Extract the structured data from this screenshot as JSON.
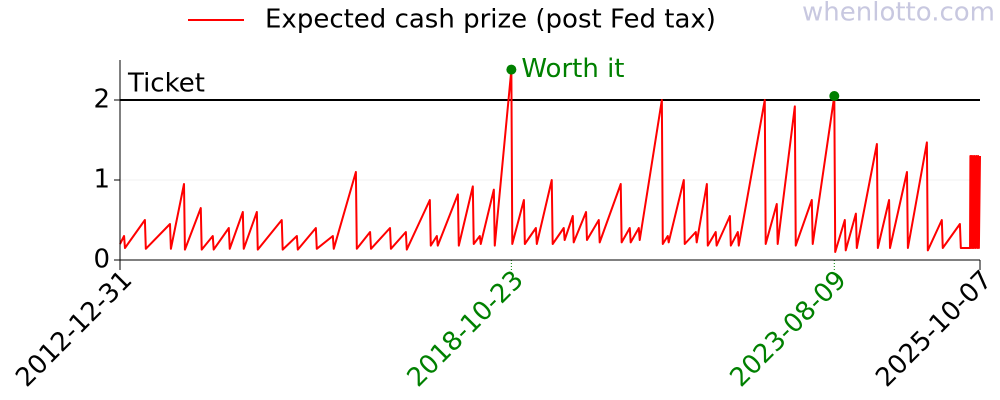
{
  "chart_data": {
    "type": "line",
    "watermark": "whenlotto.com",
    "x": [
      "2012-12-31",
      "2013-01-22",
      "2013-01-27",
      "2013-05-15",
      "2013-05-20",
      "2013-09-28",
      "2013-10-03",
      "2013-12-13",
      "2013-12-18",
      "2014-03-14",
      "2014-03-19",
      "2014-05-18",
      "2014-05-23",
      "2014-08-13",
      "2014-08-18",
      "2014-10-28",
      "2014-11-02",
      "2015-01-12",
      "2015-01-17",
      "2015-05-27",
      "2015-06-01",
      "2015-08-17",
      "2015-08-22",
      "2015-11-28",
      "2015-12-03",
      "2016-02-28",
      "2016-03-04",
      "2016-07-02",
      "2016-07-07",
      "2016-09-17",
      "2016-09-22",
      "2017-01-03",
      "2017-01-08",
      "2017-03-30",
      "2017-04-04",
      "2017-08-07",
      "2017-08-12",
      "2017-09-14",
      "2017-09-19",
      "2018-01-06",
      "2018-01-11",
      "2018-03-28",
      "2018-04-02",
      "2018-05-05",
      "2018-05-10",
      "2018-07-20",
      "2018-07-25",
      "2018-10-23",
      "2018-10-28",
      "2018-12-30",
      "2019-01-04",
      "2019-03-05",
      "2019-03-10",
      "2019-05-30",
      "2019-06-04",
      "2019-08-03",
      "2019-08-08",
      "2019-09-21",
      "2019-09-26",
      "2019-12-02",
      "2019-12-07",
      "2020-02-09",
      "2020-02-14",
      "2020-06-07",
      "2020-06-12",
      "2020-07-26",
      "2020-07-31",
      "2020-09-13",
      "2020-09-18",
      "2021-01-16",
      "2021-01-21",
      "2021-02-17",
      "2021-02-22",
      "2021-05-15",
      "2021-05-20",
      "2021-07-19",
      "2021-07-24",
      "2021-09-17",
      "2021-09-22",
      "2021-11-04",
      "2021-11-09",
      "2022-01-20",
      "2022-01-25",
      "2022-03-04",
      "2022-03-09",
      "2022-07-28",
      "2022-08-02",
      "2022-10-01",
      "2022-10-06",
      "2023-01-07",
      "2023-01-12",
      "2023-04-09",
      "2023-04-14",
      "2023-08-09",
      "2023-08-14",
      "2023-10-05",
      "2023-10-10",
      "2023-12-04",
      "2023-12-09",
      "2024-03-27",
      "2024-04-01",
      "2024-06-01",
      "2024-06-06",
      "2024-09-06",
      "2024-09-11",
      "2024-12-23",
      "2024-12-28",
      "2025-03-14",
      "2025-03-19",
      "2025-06-20",
      "2025-06-25",
      "2025-08-14",
      "2025-08-16",
      "2025-08-19",
      "2025-08-22",
      "2025-08-26",
      "2025-08-30",
      "2025-09-03",
      "2025-09-08",
      "2025-09-12",
      "2025-09-18",
      "2025-09-22",
      "2025-09-27",
      "2025-10-01",
      "2025-10-07"
    ],
    "series": [
      {
        "name": "Expected cash prize (post Fed tax)",
        "color": "#ff0000",
        "values": [
          0.2,
          0.3,
          0.15,
          0.5,
          0.14,
          0.45,
          0.14,
          0.95,
          0.13,
          0.65,
          0.13,
          0.3,
          0.13,
          0.4,
          0.14,
          0.6,
          0.14,
          0.6,
          0.13,
          0.5,
          0.13,
          0.3,
          0.13,
          0.4,
          0.14,
          0.3,
          0.14,
          1.1,
          0.14,
          0.35,
          0.14,
          0.4,
          0.14,
          0.35,
          0.13,
          0.75,
          0.18,
          0.3,
          0.18,
          0.82,
          0.18,
          0.92,
          0.2,
          0.3,
          0.2,
          0.88,
          0.18,
          2.38,
          0.2,
          0.75,
          0.2,
          0.4,
          0.2,
          1.0,
          0.2,
          0.4,
          0.25,
          0.55,
          0.22,
          0.6,
          0.25,
          0.5,
          0.22,
          0.95,
          0.22,
          0.4,
          0.22,
          0.4,
          0.25,
          2.0,
          0.2,
          0.3,
          0.22,
          1.0,
          0.2,
          0.35,
          0.22,
          0.95,
          0.18,
          0.35,
          0.18,
          0.55,
          0.18,
          0.35,
          0.18,
          2.0,
          0.2,
          0.7,
          0.2,
          1.92,
          0.18,
          0.75,
          0.2,
          2.05,
          0.1,
          0.5,
          0.12,
          0.58,
          0.15,
          1.45,
          0.15,
          0.75,
          0.15,
          1.1,
          0.15,
          1.47,
          0.12,
          0.5,
          0.15,
          0.45,
          0.15,
          0.15,
          1.3,
          0.15,
          1.3,
          0.15,
          1.3,
          0.15,
          1.3,
          0.15,
          1.3,
          0.15,
          1.3,
          0.15,
          1.3
        ]
      }
    ],
    "threshold": {
      "value": 2,
      "label": "Ticket",
      "color": "#000000"
    },
    "highlights": [
      {
        "x": "2018-10-23",
        "y": 2.38,
        "label": "Worth it"
      },
      {
        "x": "2023-08-09",
        "y": 2.05
      }
    ],
    "highlight_color": "#008000",
    "xlim": [
      "2012-12-31",
      "2025-10-07"
    ],
    "xticks": [
      "2012-12-31",
      "2018-10-23",
      "2023-08-09",
      "2025-10-07"
    ],
    "xtick_colors": [
      "#000000",
      "#008000",
      "#008000",
      "#000000"
    ],
    "ylim": [
      0,
      2.5
    ],
    "yticks": [
      0,
      1,
      2
    ],
    "grid": true,
    "legend": "top"
  }
}
